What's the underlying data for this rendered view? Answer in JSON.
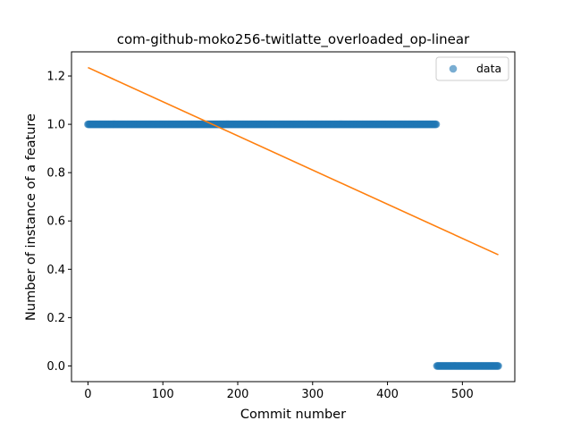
{
  "chart_data": {
    "type": "scatter",
    "title": "com-github-moko256-twitlatte_overloaded_op-linear",
    "xlabel": "Commit number",
    "ylabel": "Number of instance of a feature",
    "xlim": [
      -22,
      570
    ],
    "ylim": [
      -0.065,
      1.3
    ],
    "xticks": [
      0,
      100,
      200,
      300,
      400,
      500
    ],
    "yticks": [
      0.0,
      0.2,
      0.4,
      0.6,
      0.8,
      1.0,
      1.2
    ],
    "xtick_labels": [
      "0",
      "100",
      "200",
      "300",
      "400",
      "500"
    ],
    "ytick_labels": [
      "0.0",
      "0.2",
      "0.4",
      "0.6",
      "0.8",
      "1.0",
      "1.2"
    ],
    "grid": false,
    "legend": {
      "position": "top-right",
      "entries": [
        "data"
      ]
    },
    "series": [
      {
        "name": "data",
        "kind": "scatter",
        "color": "#1f77b4",
        "segments": [
          {
            "x_start": 0,
            "x_end": 465,
            "y": 1.0
          },
          {
            "x_start": 466,
            "x_end": 548,
            "y": 0.0
          }
        ]
      },
      {
        "kind": "line",
        "color": "#ff7f0e",
        "x": [
          0,
          548
        ],
        "y": [
          1.235,
          0.46
        ]
      }
    ]
  }
}
